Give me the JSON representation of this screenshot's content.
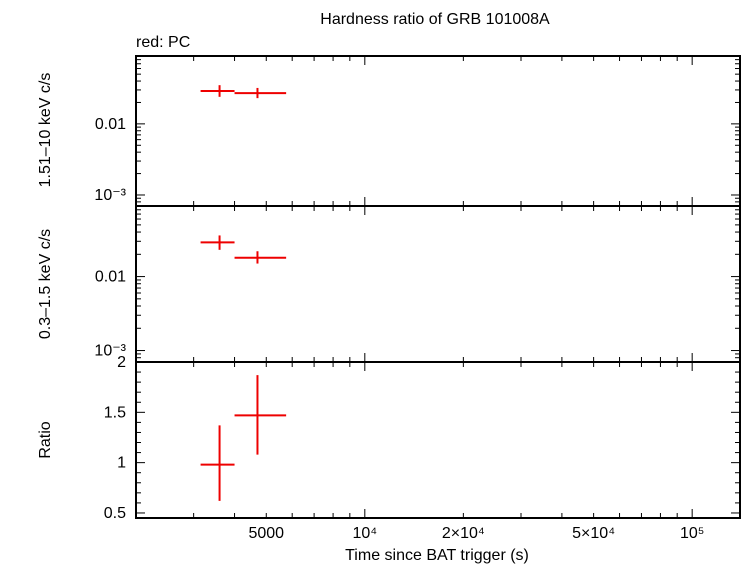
{
  "chart_data": [
    {
      "type": "scatter",
      "title": "Hardness ratio of GRB 101008A",
      "subtitle": "red: PC",
      "xlabel": "Time since BAT trigger (s)",
      "ylabel": "1.51–10 keV c/s",
      "xscale": "log",
      "yscale": "log",
      "xlim": [
        2000,
        140000
      ],
      "ylim": [
        0.0007,
        0.09
      ],
      "y_tick_labels": [
        "10⁻³",
        "0.01"
      ],
      "series": [
        {
          "color": "#ee0000",
          "points": [
            {
              "x": 3600,
              "x_lo": 3150,
              "x_hi": 4000,
              "y": 0.029,
              "y_lo": 0.024,
              "y_hi": 0.035
            },
            {
              "x": 4700,
              "x_lo": 4000,
              "x_hi": 5750,
              "y": 0.027,
              "y_lo": 0.023,
              "y_hi": 0.032
            }
          ]
        }
      ]
    },
    {
      "type": "scatter",
      "ylabel": "0.3–1.5 keV c/s",
      "xscale": "log",
      "yscale": "log",
      "xlim": [
        2000,
        140000
      ],
      "ylim": [
        0.0007,
        0.09
      ],
      "y_tick_labels": [
        "10⁻³",
        "0.01"
      ],
      "series": [
        {
          "color": "#ee0000",
          "points": [
            {
              "x": 3600,
              "x_lo": 3150,
              "x_hi": 4000,
              "y": 0.029,
              "y_lo": 0.023,
              "y_hi": 0.036
            },
            {
              "x": 4700,
              "x_lo": 4000,
              "x_hi": 5750,
              "y": 0.018,
              "y_lo": 0.015,
              "y_hi": 0.022
            }
          ]
        }
      ]
    },
    {
      "type": "scatter",
      "ylabel": "Ratio",
      "xlabel": "Time since BAT trigger (s)",
      "xscale": "log",
      "yscale": "linear",
      "xlim": [
        2000,
        140000
      ],
      "ylim": [
        0.45,
        2.0
      ],
      "y_ticks": [
        0.5,
        1,
        1.5,
        2
      ],
      "y_tick_labels": [
        "0.5",
        "1",
        "1.5",
        "2"
      ],
      "x_tick_labels": [
        "5000",
        "10⁴",
        "2×10⁴",
        "5×10⁴",
        "10⁵"
      ],
      "series": [
        {
          "color": "#ee0000",
          "points": [
            {
              "x": 3600,
              "x_lo": 3150,
              "x_hi": 4000,
              "y": 0.98,
              "y_lo": 0.62,
              "y_hi": 1.37
            },
            {
              "x": 4700,
              "x_lo": 4000,
              "x_hi": 5750,
              "y": 1.47,
              "y_lo": 1.08,
              "y_hi": 1.87
            }
          ]
        }
      ]
    }
  ]
}
